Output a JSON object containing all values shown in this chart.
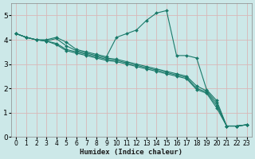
{
  "xlabel": "Humidex (Indice chaleur)",
  "ylabel": "",
  "xlim": [
    -0.5,
    23.5
  ],
  "ylim": [
    0,
    5.5
  ],
  "yticks": [
    0,
    1,
    2,
    3,
    4,
    5
  ],
  "xticks": [
    0,
    1,
    2,
    3,
    4,
    5,
    6,
    7,
    8,
    9,
    10,
    11,
    12,
    13,
    14,
    15,
    16,
    17,
    18,
    19,
    20,
    21,
    22,
    23
  ],
  "bg_color": "#cce8e8",
  "line_color": "#1a7a6a",
  "grid_color": "#d8b8b8",
  "lines": [
    {
      "x": [
        0,
        1,
        2,
        3,
        4,
        5,
        6,
        7,
        8,
        9,
        10,
        11,
        12,
        13,
        14,
        15,
        16,
        17,
        18,
        19,
        20,
        21,
        22,
        23
      ],
      "y": [
        4.25,
        4.1,
        4.0,
        4.0,
        4.1,
        3.9,
        3.6,
        3.5,
        3.4,
        3.3,
        4.1,
        4.25,
        4.4,
        4.8,
        5.1,
        5.2,
        3.35,
        3.35,
        3.25,
        1.95,
        1.5,
        0.45,
        0.45,
        0.5
      ]
    },
    {
      "x": [
        0,
        1,
        2,
        3,
        4,
        5,
        6,
        7,
        8,
        9,
        10,
        11,
        12,
        13,
        14,
        15,
        16,
        17,
        18,
        19,
        20,
        21,
        22,
        23
      ],
      "y": [
        4.25,
        4.1,
        4.0,
        3.95,
        3.85,
        3.6,
        3.5,
        3.4,
        3.3,
        3.2,
        3.15,
        3.05,
        2.95,
        2.85,
        2.75,
        2.65,
        2.55,
        2.45,
        2.0,
        1.85,
        1.3,
        0.45,
        0.45,
        0.5
      ]
    },
    {
      "x": [
        0,
        1,
        2,
        3,
        4,
        5,
        6,
        7,
        8,
        9,
        10,
        11,
        12,
        13,
        14,
        15,
        16,
        17,
        18,
        19,
        20,
        21,
        22,
        23
      ],
      "y": [
        4.25,
        4.1,
        4.0,
        3.95,
        3.8,
        3.55,
        3.45,
        3.35,
        3.25,
        3.15,
        3.1,
        3.0,
        2.9,
        2.8,
        2.7,
        2.6,
        2.5,
        2.4,
        1.95,
        1.8,
        1.2,
        0.45,
        0.45,
        0.5
      ]
    },
    {
      "x": [
        0,
        1,
        2,
        3,
        4,
        5,
        6,
        7,
        8,
        9,
        10,
        11,
        12,
        13,
        14,
        15,
        16,
        17,
        18,
        19,
        20,
        21,
        22,
        23
      ],
      "y": [
        4.25,
        4.1,
        4.0,
        3.95,
        4.05,
        3.75,
        3.55,
        3.45,
        3.35,
        3.25,
        3.2,
        3.1,
        3.0,
        2.9,
        2.8,
        2.7,
        2.6,
        2.5,
        2.1,
        1.9,
        1.4,
        0.45,
        0.45,
        0.5
      ]
    }
  ]
}
